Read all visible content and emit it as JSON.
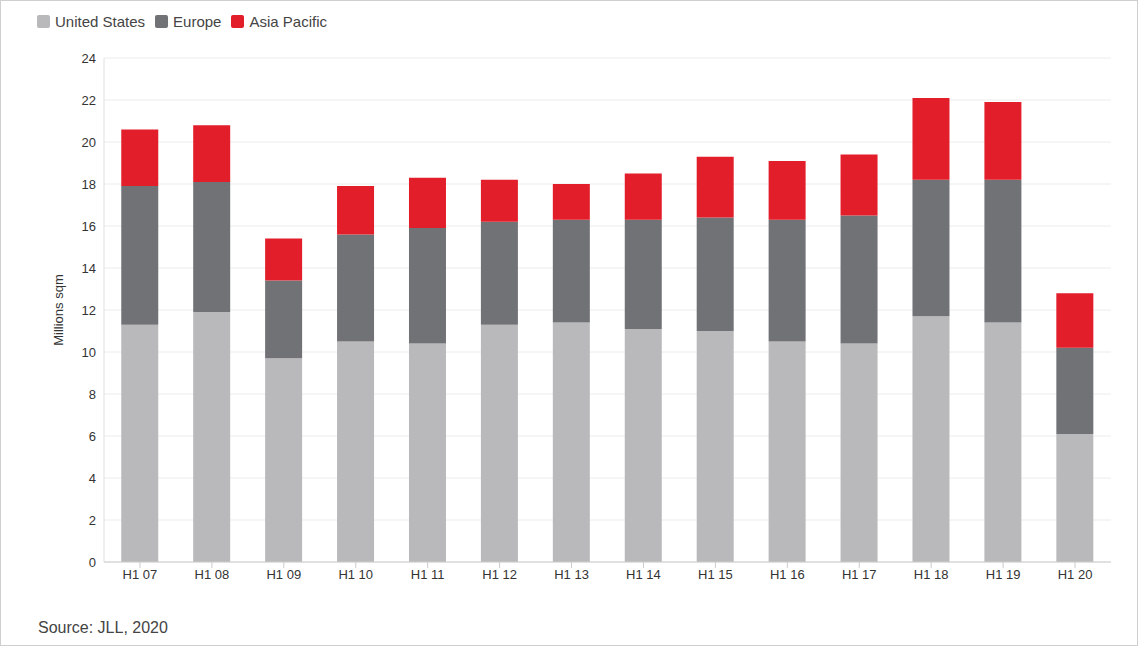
{
  "chart_data": {
    "type": "bar",
    "y_label": "Millions sqm",
    "source": "Source: JLL, 2020",
    "categories": [
      "H1 07",
      "H1 08",
      "H1 09",
      "H1 10",
      "H1 11",
      "H1 12",
      "H1 13",
      "H1 14",
      "H1 15",
      "H1 16",
      "H1 17",
      "H1 18",
      "H1 19",
      "H1 20"
    ],
    "series": [
      {
        "name": "United States",
        "color": "#b9b9bb",
        "values": [
          11.3,
          11.9,
          9.7,
          10.5,
          10.4,
          11.3,
          11.4,
          11.1,
          11.0,
          10.5,
          10.4,
          11.7,
          11.4,
          6.1
        ]
      },
      {
        "name": "Europe",
        "color": "#707276",
        "values": [
          6.6,
          6.2,
          3.7,
          5.1,
          5.5,
          4.9,
          4.9,
          5.2,
          5.4,
          5.8,
          6.1,
          6.5,
          6.8,
          4.1
        ]
      },
      {
        "name": "Asia Pacific",
        "color": "#e31e2b",
        "values": [
          2.7,
          2.7,
          2.0,
          2.3,
          2.4,
          2.0,
          1.7,
          2.2,
          2.9,
          2.8,
          2.9,
          3.9,
          3.7,
          2.6
        ]
      }
    ],
    "ylim": [
      0,
      24
    ],
    "yticks": [
      0,
      2,
      4,
      6,
      8,
      10,
      12,
      14,
      16,
      18,
      20,
      22,
      24
    ],
    "stacked": true,
    "grid": true,
    "legend": "top-left"
  }
}
